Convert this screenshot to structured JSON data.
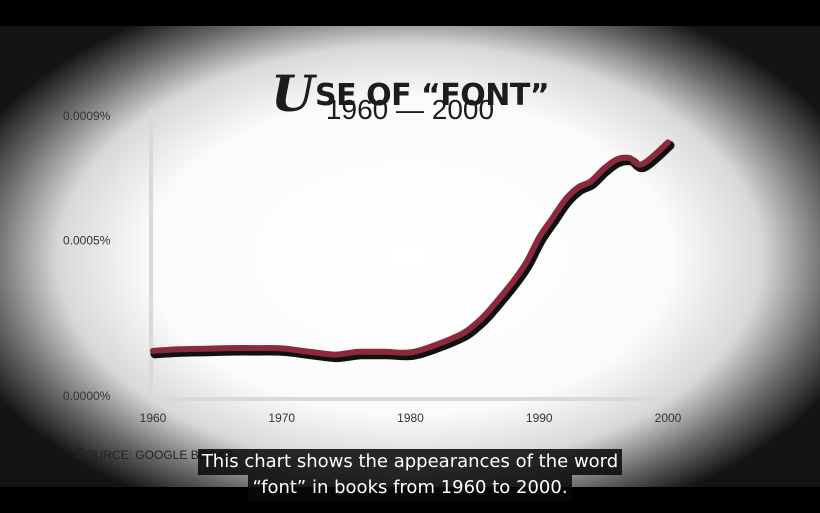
{
  "title": {
    "first_letter": "U",
    "rest": "SE OF “FONT”",
    "range": "1960 — 2000"
  },
  "source": {
    "first_letter": "S",
    "rest": "OURCE: GOOGLE BOOKS"
  },
  "subtitles": [
    "This chart shows the appearances of the word",
    "“font” in books from 1960 to 2000."
  ],
  "chart_data": {
    "type": "line",
    "title": "USE OF “FONT”",
    "subtitle": "1960 — 2000",
    "xlabel": "",
    "ylabel": "",
    "xlim": [
      1960,
      2000
    ],
    "ylim": [
      0,
      0.0009
    ],
    "y_unit": "%",
    "x_ticks": [
      "1960",
      "1970",
      "1980",
      "1990",
      "2000"
    ],
    "y_ticks": [
      {
        "value": 0.0,
        "label": "0.0000%"
      },
      {
        "value": 0.0005,
        "label": "0.0005%"
      },
      {
        "value": 0.0009,
        "label": "0.0009%"
      }
    ],
    "grid": false,
    "legend": "none",
    "line_color": "#8b2a3a",
    "shadow_color": "#111111",
    "series": [
      {
        "x": [
          1960,
          1962,
          1964,
          1966,
          1968,
          1970,
          1972,
          1974,
          1975,
          1976,
          1978,
          1980,
          1982,
          1984,
          1985,
          1986,
          1988,
          1989,
          1990,
          1991,
          1992,
          1993,
          1994,
          1995,
          1996,
          1997,
          1998,
          2000
        ],
        "y": [
          0.000145,
          0.00015,
          0.000152,
          0.000154,
          0.000154,
          0.000153,
          0.000143,
          0.000133,
          0.000137,
          0.000142,
          0.000142,
          0.00014,
          0.000165,
          0.0002,
          0.00023,
          0.00027,
          0.00037,
          0.00043,
          0.00051,
          0.00057,
          0.00063,
          0.00067,
          0.00069,
          0.00073,
          0.00076,
          0.000765,
          0.000745,
          0.000815
        ]
      }
    ]
  }
}
